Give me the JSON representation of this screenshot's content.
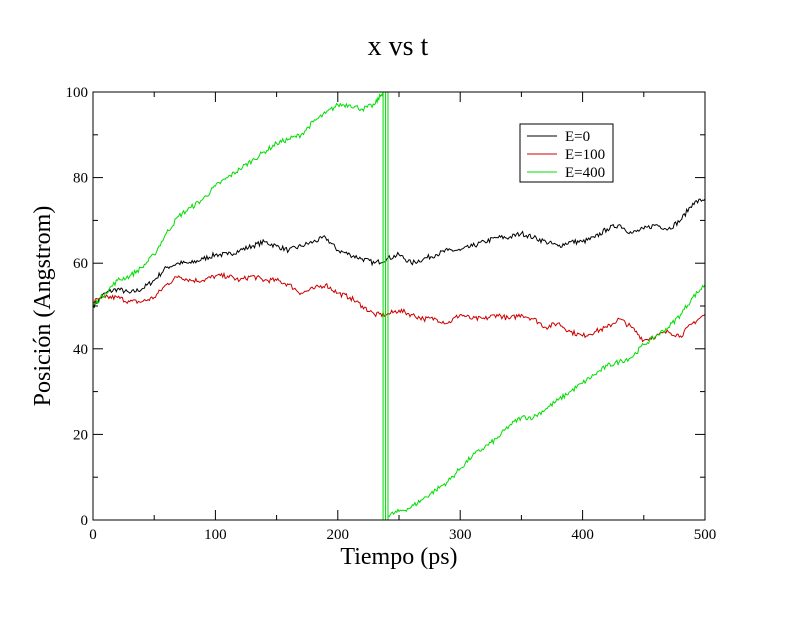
{
  "chart_data": {
    "type": "line",
    "title": "x vs t",
    "xlabel": "Tiempo (ps)",
    "ylabel": "Posición (Angstrom)",
    "xlim": [
      0,
      500
    ],
    "ylim": [
      0,
      100
    ],
    "xticks": [
      0,
      100,
      200,
      300,
      400,
      500
    ],
    "yticks": [
      0,
      20,
      40,
      60,
      80,
      100
    ],
    "xtick_labels": [
      "0",
      "100",
      "200",
      "300",
      "400",
      "500"
    ],
    "ytick_labels": [
      "0",
      "20",
      "40",
      "60",
      "80",
      "100"
    ],
    "grid": false,
    "legend_position": "top-right",
    "series": [
      {
        "name": "E=0",
        "color": "#000000",
        "segments": [
          {
            "x": [
              0,
              10,
              20,
              30,
              40,
              50,
              60,
              70,
              80,
              90,
              100,
              110,
              120,
              130,
              140,
              150,
              160,
              170,
              180,
              190,
              200,
              210,
              220,
              230,
              240,
              250,
              260,
              270,
              280,
              290,
              300,
              310,
              320,
              330,
              340,
              350,
              360,
              370,
              380,
              390,
              400,
              410,
              420,
              430,
              440,
              450,
              460,
              470,
              480,
              490,
              500
            ],
            "y": [
              50,
              53,
              54,
              53,
              54,
              56,
              59,
              60,
              60,
              61,
              62,
              62,
              63,
              64,
              65,
              64,
              63,
              64,
              65,
              66,
              63,
              62,
              61,
              60,
              61,
              62,
              60,
              61,
              62,
              63,
              63,
              64,
              65,
              66,
              66,
              67,
              66,
              65,
              64,
              65,
              65,
              66,
              68,
              69,
              67,
              68,
              69,
              68,
              70,
              74,
              75
            ]
          }
        ]
      },
      {
        "name": "E=100",
        "color": "#cc0000",
        "segments": [
          {
            "x": [
              0,
              10,
              20,
              30,
              40,
              50,
              60,
              70,
              80,
              90,
              100,
              110,
              120,
              130,
              140,
              150,
              160,
              170,
              180,
              190,
              200,
              210,
              220,
              230,
              240,
              250,
              260,
              270,
              280,
              290,
              300,
              310,
              320,
              330,
              340,
              350,
              360,
              370,
              380,
              390,
              400,
              410,
              420,
              430,
              440,
              450,
              460,
              470,
              480,
              490,
              500
            ],
            "y": [
              51,
              52,
              52,
              51,
              51,
              52,
              55,
              57,
              56,
              56,
              57,
              57,
              56,
              57,
              56,
              56,
              55,
              53,
              54,
              55,
              53,
              52,
              50,
              48,
              48,
              49,
              48,
              47,
              47,
              46,
              48,
              47,
              47,
              48,
              47,
              48,
              47,
              45,
              46,
              44,
              43,
              44,
              45,
              47,
              45,
              42,
              43,
              44,
              43,
              46,
              48
            ]
          }
        ]
      },
      {
        "name": "E=400",
        "color": "#00dd00",
        "segments": [
          {
            "x": [
              0,
              10,
              20,
              30,
              40,
              50,
              60,
              70,
              80,
              90,
              100,
              110,
              120,
              130,
              140,
              150,
              160,
              170,
              180,
              190,
              200,
              210,
              220,
              230,
              237
            ],
            "y": [
              50,
              53,
              56,
              57,
              59,
              62,
              67,
              71,
              73,
              75,
              78,
              80,
              82,
              84,
              86,
              88,
              89,
              90,
              93,
              95,
              97,
              97,
              96,
              97,
              100
            ]
          },
          {
            "x": [
              237,
              237
            ],
            "y": [
              100,
              0
            ]
          },
          {
            "x": [
              237,
              239,
              239
            ],
            "y": [
              0,
              0,
              100
            ]
          },
          {
            "x": [
              241,
              241
            ],
            "y": [
              100,
              0
            ]
          },
          {
            "x": [
              241,
              250,
              260,
              270,
              280,
              290,
              300,
              310,
              320,
              330,
              340,
              350,
              360,
              370,
              380,
              390,
              400,
              410,
              420,
              430,
              440,
              450,
              460,
              470,
              480,
              490,
              500
            ],
            "y": [
              1,
              2,
              3,
              5,
              7,
              9,
              12,
              15,
              17,
              19,
              22,
              24,
              24,
              26,
              28,
              30,
              32,
              34,
              36,
              37,
              38,
              41,
              43,
              45,
              48,
              52,
              55
            ]
          }
        ]
      }
    ]
  }
}
